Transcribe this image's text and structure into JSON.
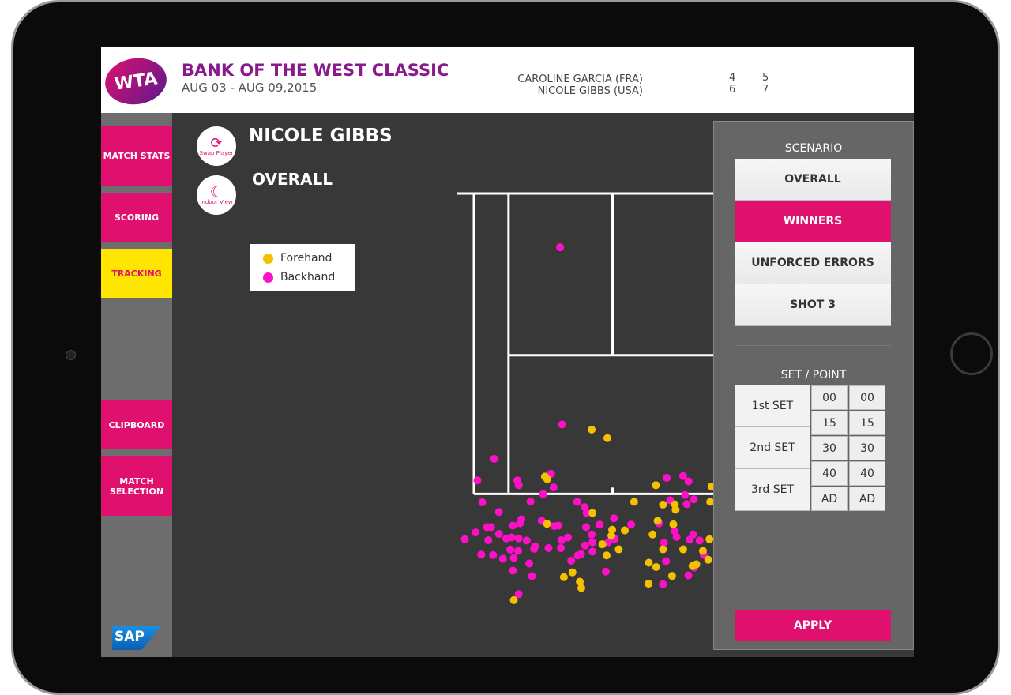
{
  "header": {
    "logo": "WTA",
    "title": "BANK OF THE WEST CLASSIC",
    "dates": "AUG 03 - AUG 09,2015",
    "players": [
      {
        "name": "CAROLINE GARCIA (FRA)",
        "sets": [
          "4",
          "5"
        ]
      },
      {
        "name": "NICOLE GIBBS (USA)",
        "sets": [
          "6",
          "7"
        ]
      }
    ]
  },
  "sidebar": {
    "items": [
      {
        "label": "MATCH STATS"
      },
      {
        "label": "SCORING"
      },
      {
        "label": "TRACKING",
        "active": true
      },
      {
        "label": "CLIPBOARD"
      },
      {
        "label": "MATCH SELECTION"
      }
    ],
    "sponsor": "SAP"
  },
  "main": {
    "player": "NICOLE GIBBS",
    "scenario": "OVERALL",
    "swap": {
      "icon": "swap-icon",
      "label": "Swap Player"
    },
    "indoor": {
      "icon": "moon-icon",
      "label": "Indoor View"
    },
    "legend": [
      {
        "label": "Forehand",
        "color": "#f5c000"
      },
      {
        "label": "Backhand",
        "color": "#ff10c8"
      }
    ]
  },
  "panel": {
    "scenario_title": "SCENARIO",
    "options": [
      "OVERALL",
      "WINNERS",
      "UNFORCED ERRORS",
      "SHOT 3"
    ],
    "selected": "WINNERS",
    "setpoint_title": "SET / POINT",
    "sets": [
      "1st SET",
      "2nd SET",
      "3rd SET"
    ],
    "points": [
      "00",
      "15",
      "30",
      "40",
      "AD"
    ],
    "apply": "APPLY"
  },
  "chart_data": {
    "type": "scatter",
    "units": "meters (x from left doubles sideline, y from net)",
    "series": [
      {
        "name": "Backhand",
        "color": "#ff10c8",
        "points": [
          [
            3.49,
            9.14
          ],
          [
            0.8,
            10.5
          ],
          [
            0.14,
            11.35
          ],
          [
            1.72,
            11.35
          ],
          [
            1.77,
            11.54
          ],
          [
            3.05,
            11.09
          ],
          [
            3.15,
            11.63
          ],
          [
            2.74,
            11.89
          ],
          [
            0.33,
            12.22
          ],
          [
            2.24,
            12.19
          ],
          [
            0.99,
            12.6
          ],
          [
            4.09,
            12.2
          ],
          [
            4.38,
            12.41
          ],
          [
            4.46,
            12.64
          ],
          [
            1.88,
            12.89
          ],
          [
            1.82,
            13.05
          ],
          [
            1.54,
            13.14
          ],
          [
            0.52,
            13.2
          ],
          [
            0.68,
            13.2
          ],
          [
            2.68,
            12.95
          ],
          [
            3.18,
            13.16
          ],
          [
            3.35,
            13.14
          ],
          [
            0.07,
            13.41
          ],
          [
            -0.36,
            13.68
          ],
          [
            0.57,
            13.72
          ],
          [
            0.99,
            13.47
          ],
          [
            1.28,
            13.65
          ],
          [
            1.49,
            13.61
          ],
          [
            1.77,
            13.65
          ],
          [
            2.09,
            13.73
          ],
          [
            2.42,
            13.96
          ],
          [
            2.38,
            14.06
          ],
          [
            2.95,
            14.03
          ],
          [
            3.44,
            14.03
          ],
          [
            3.46,
            13.72
          ],
          [
            3.72,
            13.61
          ],
          [
            4.44,
            13.2
          ],
          [
            4.66,
            13.49
          ],
          [
            4.69,
            13.8
          ],
          [
            4.4,
            13.93
          ],
          [
            4.69,
            14.17
          ],
          [
            4.97,
            13.1
          ],
          [
            5.54,
            12.85
          ],
          [
            6.22,
            13.1
          ],
          [
            5.31,
            13.8
          ],
          [
            5.57,
            13.67
          ],
          [
            0.29,
            14.29
          ],
          [
            0.76,
            14.31
          ],
          [
            1.15,
            14.45
          ],
          [
            1.58,
            14.42
          ],
          [
            1.44,
            14.09
          ],
          [
            1.75,
            14.14
          ],
          [
            2.19,
            14.64
          ],
          [
            1.54,
            14.92
          ],
          [
            2.3,
            15.14
          ],
          [
            3.85,
            14.53
          ],
          [
            4.11,
            14.32
          ],
          [
            4.24,
            14.27
          ],
          [
            5.22,
            14.96
          ],
          [
            1.77,
            15.85
          ],
          [
            7.63,
            11.25
          ],
          [
            8.28,
            11.18
          ],
          [
            8.49,
            11.39
          ],
          [
            8.35,
            11.93
          ],
          [
            8.42,
            12.29
          ],
          [
            7.76,
            12.14
          ],
          [
            8.7,
            12.1
          ],
          [
            7.32,
            13.05
          ],
          [
            7.95,
            13.36
          ],
          [
            8.02,
            13.59
          ],
          [
            7.52,
            13.82
          ],
          [
            8.54,
            13.7
          ],
          [
            8.67,
            13.49
          ],
          [
            8.93,
            13.73
          ],
          [
            9.09,
            14.3
          ],
          [
            7.6,
            14.55
          ],
          [
            8.72,
            14.8
          ],
          [
            8.49,
            15.11
          ],
          [
            7.48,
            15.46
          ],
          [
            3.41,
            2.13
          ]
        ]
      },
      {
        "name": "Forehand",
        "color": "#f5c000",
        "points": [
          [
            4.66,
            9.34
          ],
          [
            5.28,
            9.68
          ],
          [
            2.81,
            11.2
          ],
          [
            2.9,
            11.3
          ],
          [
            4.69,
            12.64
          ],
          [
            2.89,
            13.07
          ],
          [
            6.34,
            12.2
          ],
          [
            7.2,
            11.54
          ],
          [
            9.4,
            11.59
          ],
          [
            7.48,
            12.31
          ],
          [
            7.95,
            12.3
          ],
          [
            7.98,
            12.51
          ],
          [
            9.35,
            12.2
          ],
          [
            7.27,
            12.95
          ],
          [
            7.89,
            13.09
          ],
          [
            7.07,
            13.49
          ],
          [
            5.97,
            13.33
          ],
          [
            5.47,
            13.3
          ],
          [
            5.44,
            13.54
          ],
          [
            5.08,
            13.88
          ],
          [
            5.73,
            14.08
          ],
          [
            5.25,
            14.32
          ],
          [
            3.9,
            14.99
          ],
          [
            3.56,
            15.18
          ],
          [
            4.19,
            15.36
          ],
          [
            4.25,
            15.61
          ],
          [
            1.58,
            16.09
          ],
          [
            6.92,
            14.61
          ],
          [
            7.21,
            14.78
          ],
          [
            6.91,
            15.44
          ],
          [
            7.84,
            15.13
          ],
          [
            7.48,
            14.08
          ],
          [
            8.28,
            14.08
          ],
          [
            9.06,
            14.14
          ],
          [
            9.27,
            14.49
          ],
          [
            9.32,
            13.68
          ],
          [
            8.65,
            14.74
          ],
          [
            8.8,
            14.67
          ]
        ]
      }
    ]
  }
}
